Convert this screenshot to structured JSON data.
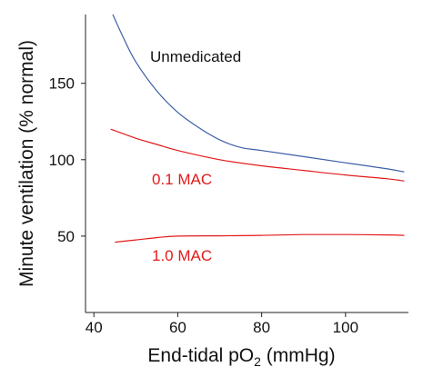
{
  "chart_data": {
    "type": "line",
    "xlabel": "End-tidal pO",
    "xlabel_subscript": "2",
    "xlabel_unit": " (mmHg)",
    "ylabel": "Minute ventilation (% normal)",
    "xlim": [
      38,
      115
    ],
    "ylim": [
      0,
      195
    ],
    "xticks": [
      40,
      60,
      80,
      100
    ],
    "yticks": [
      50,
      100,
      150
    ],
    "grid": false,
    "series": [
      {
        "name": "Unmedicated",
        "color": "#3b5fa6",
        "x": [
          44.5,
          47,
          50,
          55,
          60,
          65,
          70,
          75,
          80,
          90,
          100,
          110,
          114
        ],
        "y": [
          195,
          180,
          164,
          145,
          131,
          121,
          113,
          108,
          106,
          102,
          98,
          94,
          92
        ]
      },
      {
        "name": "0.1 MAC",
        "color": "#e31a1c",
        "x": [
          44,
          50,
          55,
          60,
          70,
          80,
          90,
          100,
          110,
          114
        ],
        "y": [
          120,
          114,
          110,
          106,
          100,
          96,
          93,
          90,
          87.5,
          86
        ]
      },
      {
        "name": "1.0 MAC",
        "color": "#e31a1c",
        "x": [
          45,
          50,
          55,
          60,
          70,
          80,
          90,
          100,
          110,
          114
        ],
        "y": [
          46,
          47.5,
          49,
          50,
          50.2,
          50.5,
          51,
          51,
          50.8,
          50.5
        ]
      }
    ]
  }
}
